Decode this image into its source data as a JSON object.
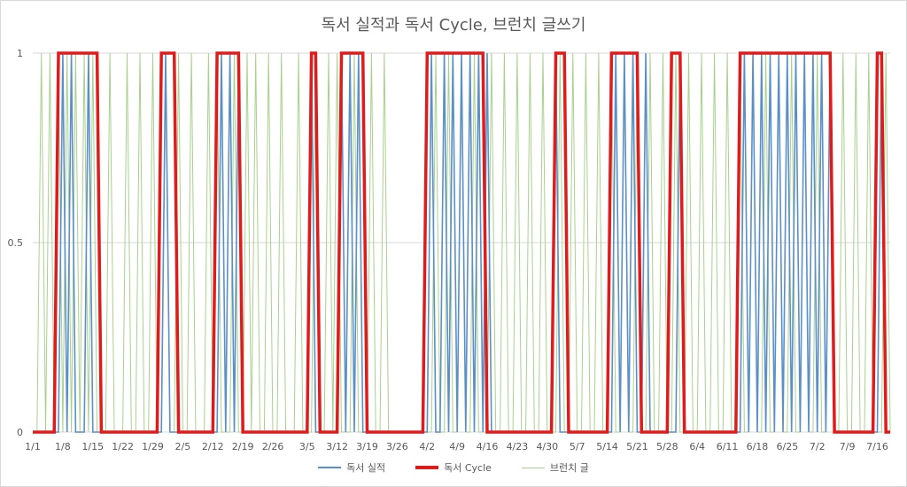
{
  "chart_data": {
    "type": "line",
    "title": "독서 실적과 독서  Cycle, 브런치 글쓰기",
    "xlabel": "",
    "ylabel": "",
    "ylim": [
      0,
      1
    ],
    "yticks": [
      "0",
      "0.5",
      "1"
    ],
    "x_start": "1/1",
    "x_end": "7/19",
    "x_tick_labels": [
      "1/1",
      "1/8",
      "1/15",
      "1/22",
      "1/29",
      "2/5",
      "2/12",
      "2/19",
      "2/26",
      "3/5",
      "3/12",
      "3/19",
      "3/26",
      "4/2",
      "4/9",
      "4/16",
      "4/23",
      "4/30",
      "5/7",
      "5/14",
      "5/21",
      "5/28",
      "6/4",
      "6/11",
      "6/18",
      "6/25",
      "7/2",
      "7/9",
      "7/16"
    ],
    "grid": true,
    "legend_position": "bottom",
    "series": [
      {
        "name": "독서 실적",
        "color": "#5b8fc7",
        "ones": [
          "1/8",
          "1/10",
          "1/14",
          "2/1",
          "2/14",
          "2/16",
          "2/18",
          "3/6",
          "3/13",
          "3/15",
          "3/17",
          "4/3",
          "4/6",
          "4/8",
          "4/10",
          "4/12",
          "4/14",
          "4/16",
          "5/2",
          "5/16",
          "5/18",
          "5/20",
          "5/23",
          "5/31",
          "6/15",
          "6/17",
          "6/19",
          "6/21",
          "6/23",
          "6/25",
          "6/27",
          "6/29",
          "7/1",
          "7/3",
          "7/5",
          "7/17"
        ]
      },
      {
        "name": "독서 Cycle",
        "color": "#e01b1b",
        "ones_ranges": [
          [
            "1/7",
            "1/16"
          ],
          [
            "1/31",
            "2/3"
          ],
          [
            "2/13",
            "2/18"
          ],
          [
            "3/6",
            "3/7"
          ],
          [
            "3/13",
            "3/18"
          ],
          [
            "4/2",
            "4/15"
          ],
          [
            "5/2",
            "5/4"
          ],
          [
            "5/15",
            "5/21"
          ],
          [
            "5/29",
            "5/31"
          ],
          [
            "6/14",
            "7/5"
          ],
          [
            "7/16",
            "7/17"
          ]
        ]
      },
      {
        "name": "브런치 글",
        "color": "#a9d08e",
        "ones": [
          "1/3",
          "1/5",
          "1/7",
          "1/9",
          "1/11",
          "1/13",
          "1/15",
          "1/19",
          "1/23",
          "1/26",
          "1/29",
          "2/1",
          "2/4",
          "2/7",
          "2/11",
          "2/13",
          "2/17",
          "2/20",
          "2/22",
          "2/25",
          "2/28",
          "3/3",
          "3/7",
          "3/10",
          "3/12",
          "3/16",
          "3/20",
          "3/23",
          "4/4",
          "4/7",
          "4/10",
          "4/13",
          "4/17",
          "4/20",
          "4/23",
          "4/26",
          "4/29",
          "5/3",
          "5/6",
          "5/9",
          "5/12",
          "5/15",
          "5/18",
          "5/21",
          "5/24",
          "5/27",
          "5/30",
          "6/2",
          "6/5",
          "6/8",
          "6/11",
          "6/14",
          "6/17",
          "6/20",
          "6/23",
          "6/26",
          "6/29",
          "7/2",
          "7/5",
          "7/8",
          "7/11",
          "7/14",
          "7/18"
        ]
      }
    ]
  }
}
